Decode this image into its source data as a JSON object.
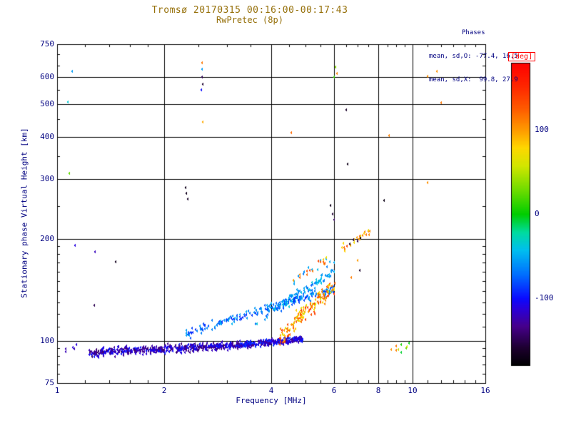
{
  "title": "Tromsø 20170315 00:16:00-00:17:43",
  "subtitle": "RwPretec (8p)",
  "stats": {
    "header": "Phases",
    "line_o": "mean, sd,O: -77.4, 16.5",
    "line_x": "mean, sd,X:  99.8, 27.9"
  },
  "chart_data": {
    "type": "scatter",
    "title": "Tromsø 20170315 00:16:00-00:17:43",
    "subtitle": "RwPretec (8p)",
    "xlabel": "Frequency [MHz]",
    "ylabel": "Stationary phase Virtual Height [km]",
    "x_scale": "log",
    "y_scale": "log",
    "xlim": [
      1,
      16
    ],
    "ylim": [
      75,
      750
    ],
    "x_ticks": [
      1,
      2,
      4,
      6,
      8,
      10,
      16
    ],
    "y_ticks": [
      75,
      100,
      200,
      300,
      400,
      500,
      600,
      750
    ],
    "x_minor_ticks": [
      1.2,
      1.4,
      1.6,
      1.8,
      2.5,
      3,
      3.5,
      4.5,
      5,
      5.5,
      6.5,
      7,
      7.5,
      8.5,
      9,
      9.5,
      11,
      12,
      13,
      14,
      15
    ],
    "y_minor_ticks": [
      80,
      85,
      90,
      95,
      110,
      120,
      130,
      140,
      150,
      160,
      170,
      180,
      190,
      250,
      350,
      450,
      550,
      650,
      700
    ],
    "grid": true,
    "legend": "colorbar-right",
    "colorbar": {
      "label": "[deg]",
      "min": -180,
      "max": 180,
      "ticks": [
        100,
        0,
        -100
      ]
    },
    "colors": {
      "title": "#96700a",
      "axis_text": "#000080",
      "frame": "#000000",
      "colorbar_label": "#ff0000",
      "background": "#ffffff"
    },
    "render_seed": 20170315,
    "clusters": [
      {
        "name": "main-band-low",
        "count": 500,
        "f": [
          1.22,
          3.3
        ],
        "h": [
          92,
          97
        ],
        "h_spread": 4.5,
        "phase": [
          -145,
          -95
        ]
      },
      {
        "name": "main-band-high",
        "count": 280,
        "f": [
          3.2,
          4.9
        ],
        "h": [
          97,
          101
        ],
        "h_spread": 3.5,
        "phase": [
          -135,
          -85
        ]
      },
      {
        "name": "diagonal-trace-1",
        "count": 200,
        "f": [
          2.3,
          6.0
        ],
        "h": [
          104,
          142
        ],
        "h_spread": 6,
        "phase": [
          -95,
          -45
        ]
      },
      {
        "name": "diagonal-trace-2",
        "count": 100,
        "f": [
          3.6,
          6.05
        ],
        "h": [
          112,
          160
        ],
        "h_spread": 8,
        "phase": [
          -75,
          -35
        ]
      },
      {
        "name": "x-mode-orange",
        "count": 150,
        "f": [
          4.2,
          6.05
        ],
        "h": [
          100,
          145
        ],
        "h_spread": 12,
        "phase": [
          55,
          150
        ]
      },
      {
        "name": "upper-scatter-cyan",
        "count": 14,
        "f": [
          4.4,
          6.0
        ],
        "h": [
          150,
          175
        ],
        "h_spread": 12,
        "phase": [
          -70,
          -35
        ]
      },
      {
        "name": "upper-scatter-warm",
        "count": 14,
        "f": [
          4.6,
          6.1
        ],
        "h": [
          150,
          180
        ],
        "h_spread": 12,
        "phase": [
          70,
          140
        ]
      },
      {
        "name": "f-region-cluster",
        "count": 24,
        "f": [
          6.3,
          7.6
        ],
        "h": [
          186,
          212
        ],
        "h_spread": 9,
        "phase": [
          70,
          140
        ]
      },
      {
        "name": "f-region-dark",
        "count": 4,
        "f": [
          6.4,
          7.4
        ],
        "h": [
          190,
          205
        ],
        "h_spread": 8,
        "phase": [
          -175,
          -150
        ]
      },
      {
        "name": "bottom-right-sparse",
        "count": 9,
        "f": [
          8.1,
          10.3
        ],
        "h": [
          90,
          100
        ],
        "h_spread": 5,
        "phase": [
          -10,
          120
        ]
      },
      {
        "name": "bottom-left-sparse",
        "count": 5,
        "f": [
          1.04,
          1.18
        ],
        "h": [
          93,
          99
        ],
        "h_spread": 3,
        "phase": [
          -135,
          -105
        ]
      }
    ],
    "points": [
      [
        1.1,
        623,
        -55
      ],
      [
        2.55,
        662,
        115
      ],
      [
        2.55,
        634,
        -55
      ],
      [
        2.56,
        600,
        -150
      ],
      [
        2.57,
        572,
        -160
      ],
      [
        2.54,
        549,
        -100
      ],
      [
        6.05,
        641,
        35
      ],
      [
        6.12,
        616,
        110
      ],
      [
        6.02,
        600,
        15
      ],
      [
        11.0,
        602,
        105
      ],
      [
        11.7,
        625,
        105
      ],
      [
        1.07,
        506,
        -35
      ],
      [
        12.0,
        505,
        115
      ],
      [
        6.5,
        480,
        -163
      ],
      [
        2.57,
        443,
        95
      ],
      [
        4.55,
        412,
        120
      ],
      [
        8.57,
        403,
        110
      ],
      [
        1.08,
        312,
        25
      ],
      [
        11.0,
        293,
        105
      ],
      [
        2.3,
        283,
        -170
      ],
      [
        2.31,
        272,
        -168
      ],
      [
        2.33,
        262,
        -165
      ],
      [
        5.88,
        251,
        -170
      ],
      [
        5.95,
        237,
        -158
      ],
      [
        6.0,
        228,
        -150
      ],
      [
        8.3,
        260,
        -172
      ],
      [
        6.57,
        332,
        -170
      ],
      [
        1.12,
        191,
        -110
      ],
      [
        1.28,
        183,
        -120
      ],
      [
        1.46,
        171,
        -168
      ],
      [
        1.27,
        127,
        -150
      ],
      [
        7.0,
        173,
        100
      ],
      [
        7.1,
        161,
        -162
      ],
      [
        6.72,
        154,
        112
      ]
    ]
  }
}
